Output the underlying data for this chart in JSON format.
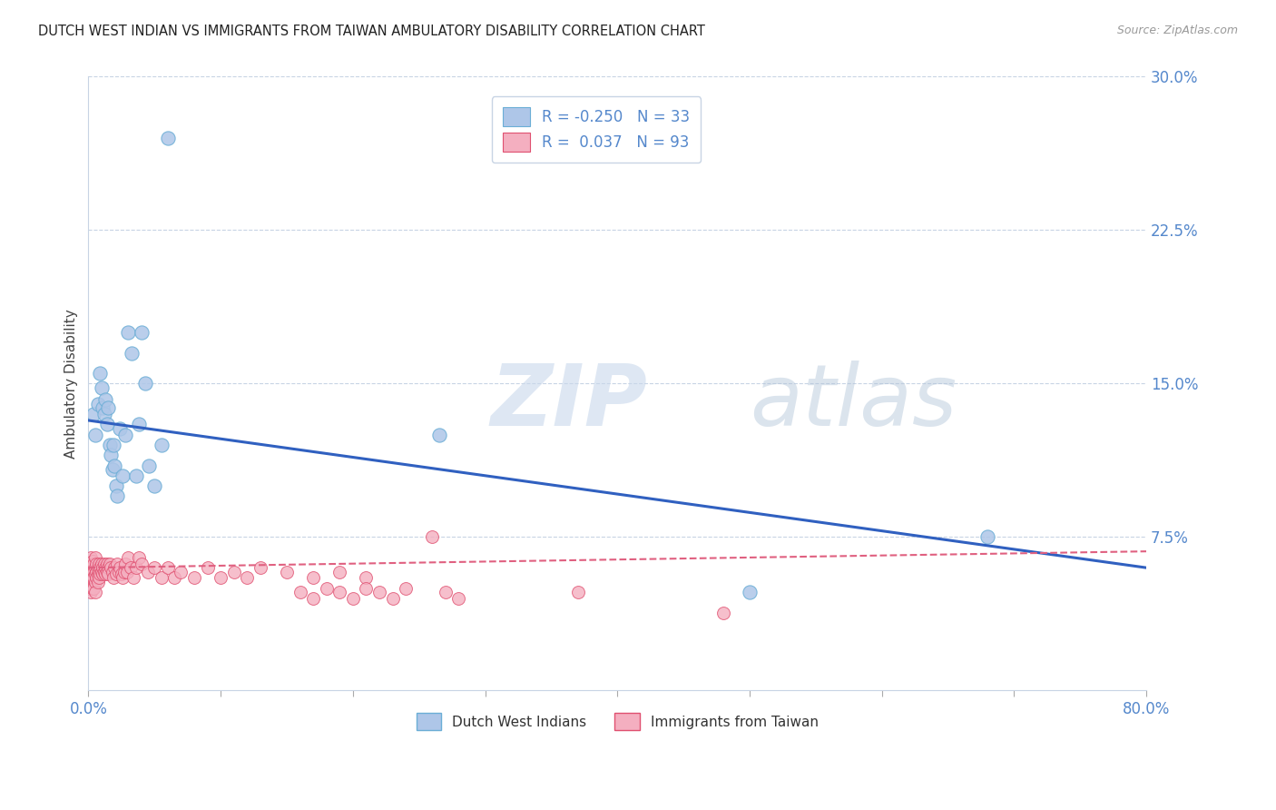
{
  "title": "DUTCH WEST INDIAN VS IMMIGRANTS FROM TAIWAN AMBULATORY DISABILITY CORRELATION CHART",
  "source": "Source: ZipAtlas.com",
  "ylabel": "Ambulatory Disability",
  "xlim": [
    0.0,
    0.8
  ],
  "ylim": [
    0.0,
    0.3
  ],
  "yticks": [
    0.0,
    0.075,
    0.15,
    0.225,
    0.3
  ],
  "ytick_labels": [
    "",
    "7.5%",
    "15.0%",
    "22.5%",
    "30.0%"
  ],
  "xticks": [
    0.0,
    0.1,
    0.2,
    0.3,
    0.4,
    0.5,
    0.6,
    0.7,
    0.8
  ],
  "xtick_labels": [
    "0.0%",
    "",
    "",
    "",
    "",
    "",
    "",
    "",
    "80.0%"
  ],
  "blue_color": "#aec6e8",
  "pink_color": "#f4afc0",
  "blue_edge": "#6baed6",
  "pink_edge": "#e05070",
  "trend_blue": "#3060c0",
  "trend_pink": "#e06080",
  "legend_R_blue": "-0.250",
  "legend_N_blue": "33",
  "legend_R_pink": "0.037",
  "legend_N_pink": "93",
  "legend_label_blue": "Dutch West Indians",
  "legend_label_pink": "Immigrants from Taiwan",
  "watermark_zip": "ZIP",
  "watermark_atlas": "atlas",
  "blue_trend_x0": 0.0,
  "blue_trend_y0": 0.132,
  "blue_trend_x1": 0.8,
  "blue_trend_y1": 0.06,
  "pink_trend_x0": 0.0,
  "pink_trend_y0": 0.06,
  "pink_trend_x1": 0.8,
  "pink_trend_y1": 0.068,
  "blue_x": [
    0.004,
    0.005,
    0.007,
    0.009,
    0.01,
    0.011,
    0.012,
    0.013,
    0.014,
    0.015,
    0.016,
    0.017,
    0.018,
    0.019,
    0.02,
    0.021,
    0.022,
    0.024,
    0.026,
    0.028,
    0.03,
    0.033,
    0.036,
    0.038,
    0.04,
    0.043,
    0.046,
    0.05,
    0.055,
    0.06,
    0.265,
    0.5,
    0.68
  ],
  "blue_y": [
    0.135,
    0.125,
    0.14,
    0.155,
    0.148,
    0.138,
    0.135,
    0.142,
    0.13,
    0.138,
    0.12,
    0.115,
    0.108,
    0.12,
    0.11,
    0.1,
    0.095,
    0.128,
    0.105,
    0.125,
    0.175,
    0.165,
    0.105,
    0.13,
    0.175,
    0.15,
    0.11,
    0.1,
    0.12,
    0.27,
    0.125,
    0.048,
    0.075
  ],
  "pink_x": [
    0.001,
    0.001,
    0.001,
    0.002,
    0.002,
    0.002,
    0.002,
    0.003,
    0.003,
    0.003,
    0.003,
    0.004,
    0.004,
    0.004,
    0.004,
    0.005,
    0.005,
    0.005,
    0.005,
    0.005,
    0.006,
    0.006,
    0.006,
    0.007,
    0.007,
    0.007,
    0.008,
    0.008,
    0.008,
    0.009,
    0.009,
    0.01,
    0.01,
    0.011,
    0.011,
    0.012,
    0.012,
    0.013,
    0.013,
    0.014,
    0.014,
    0.015,
    0.015,
    0.016,
    0.017,
    0.018,
    0.019,
    0.02,
    0.021,
    0.022,
    0.023,
    0.024,
    0.025,
    0.026,
    0.027,
    0.028,
    0.029,
    0.03,
    0.032,
    0.034,
    0.036,
    0.038,
    0.04,
    0.045,
    0.05,
    0.055,
    0.06,
    0.065,
    0.07,
    0.08,
    0.09,
    0.1,
    0.11,
    0.12,
    0.13,
    0.15,
    0.17,
    0.19,
    0.21,
    0.16,
    0.17,
    0.18,
    0.19,
    0.2,
    0.21,
    0.22,
    0.23,
    0.24,
    0.26,
    0.27,
    0.28,
    0.37,
    0.48
  ],
  "pink_y": [
    0.06,
    0.055,
    0.05,
    0.065,
    0.058,
    0.055,
    0.048,
    0.063,
    0.058,
    0.055,
    0.05,
    0.062,
    0.058,
    0.055,
    0.05,
    0.065,
    0.06,
    0.057,
    0.053,
    0.048,
    0.062,
    0.058,
    0.055,
    0.06,
    0.057,
    0.053,
    0.062,
    0.058,
    0.055,
    0.06,
    0.057,
    0.062,
    0.058,
    0.06,
    0.057,
    0.062,
    0.058,
    0.06,
    0.057,
    0.062,
    0.058,
    0.06,
    0.057,
    0.062,
    0.06,
    0.058,
    0.055,
    0.06,
    0.057,
    0.062,
    0.058,
    0.06,
    0.057,
    0.055,
    0.058,
    0.062,
    0.058,
    0.065,
    0.06,
    0.055,
    0.06,
    0.065,
    0.062,
    0.058,
    0.06,
    0.055,
    0.06,
    0.055,
    0.058,
    0.055,
    0.06,
    0.055,
    0.058,
    0.055,
    0.06,
    0.058,
    0.055,
    0.058,
    0.055,
    0.048,
    0.045,
    0.05,
    0.048,
    0.045,
    0.05,
    0.048,
    0.045,
    0.05,
    0.075,
    0.048,
    0.045,
    0.048,
    0.038
  ]
}
